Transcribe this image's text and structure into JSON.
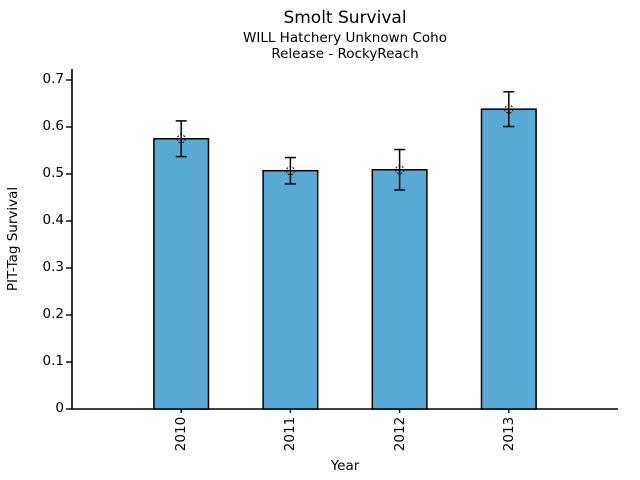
{
  "chart_data": {
    "type": "bar",
    "title": "Smolt Survival",
    "subtitle1": "WILL Hatchery Unknown Coho",
    "subtitle2": "Release - RockyReach",
    "xlabel": "Year",
    "ylabel": "PIT-Tag Survival",
    "categories": [
      "2010",
      "2011",
      "2012",
      "2013"
    ],
    "values": [
      0.575,
      0.507,
      0.509,
      0.638
    ],
    "errors": [
      0.038,
      0.028,
      0.043,
      0.037
    ],
    "yticks": [
      0,
      0.1,
      0.2,
      0.3,
      0.4,
      0.5,
      0.6,
      0.7
    ],
    "ytick_labels": [
      "0",
      "0.1",
      "0.2",
      "0.3",
      "0.4",
      "0.5",
      "0.6",
      "0.7"
    ],
    "ylim": [
      0,
      0.72
    ],
    "bar_color": "#58a9d3",
    "edge_color": "#000000",
    "error_color": "#000000",
    "marker": "open-circle-dotted",
    "grid": false,
    "legend": "none"
  }
}
